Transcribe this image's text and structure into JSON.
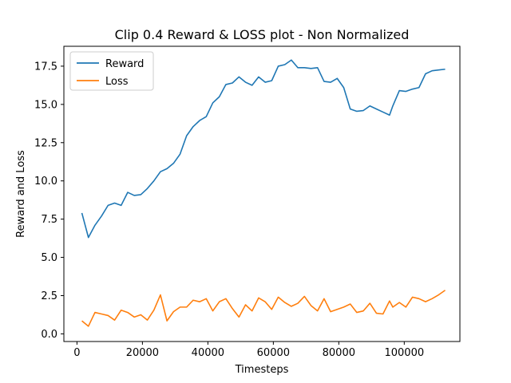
{
  "chart_data": {
    "type": "line",
    "title": "Clip 0.4 Reward & LOSS plot - Non Normalized",
    "xlabel": "Timesteps",
    "ylabel": "Reward and Loss",
    "xlim": [
      -4000,
      117000
    ],
    "ylim": [
      -0.5,
      18.8
    ],
    "xticks": [
      0,
      20000,
      40000,
      60000,
      80000,
      100000
    ],
    "yticks": [
      0.0,
      2.5,
      5.0,
      7.5,
      10.0,
      12.5,
      15.0,
      17.5
    ],
    "grid": false,
    "legend": "top-left",
    "series": [
      {
        "name": "Reward",
        "color": "#1f77b4",
        "x": [
          1500,
          3500,
          5500,
          7500,
          9500,
          11500,
          13500,
          15500,
          17500,
          19500,
          21500,
          23500,
          25500,
          27500,
          29500,
          31500,
          33500,
          35500,
          37500,
          39500,
          41500,
          43500,
          45500,
          47500,
          49500,
          51500,
          53500,
          55500,
          57500,
          59500,
          61500,
          63500,
          65500,
          67500,
          69500,
          71500,
          73500,
          75500,
          77500,
          79500,
          81500,
          83500,
          85500,
          87500,
          89500,
          91500,
          93500,
          95500,
          96500,
          98500,
          100500,
          102500,
          104500,
          106500,
          108500,
          110500,
          112500
        ],
        "values": [
          7.9,
          6.3,
          7.1,
          7.7,
          8.4,
          8.55,
          8.4,
          9.25,
          9.05,
          9.1,
          9.5,
          10.0,
          10.6,
          10.8,
          11.15,
          11.75,
          12.95,
          13.55,
          13.95,
          14.2,
          15.1,
          15.5,
          16.3,
          16.4,
          16.8,
          16.45,
          16.25,
          16.8,
          16.45,
          16.55,
          17.5,
          17.6,
          17.9,
          17.4,
          17.4,
          17.35,
          17.4,
          16.5,
          16.45,
          16.7,
          16.1,
          14.7,
          14.55,
          14.6,
          14.9,
          14.7,
          14.5,
          14.3,
          14.9,
          15.9,
          15.85,
          16.0,
          16.1,
          17.0,
          17.2,
          17.25,
          17.3
        ],
        "_note": ""
      },
      {
        "name": "Loss",
        "color": "#ff7f0e",
        "x": [
          1500,
          3500,
          5500,
          7500,
          9500,
          11500,
          13500,
          15500,
          17500,
          19500,
          21500,
          23500,
          25500,
          27500,
          29500,
          31500,
          33500,
          35500,
          37500,
          39500,
          41500,
          43500,
          45500,
          47500,
          49500,
          51500,
          53500,
          55500,
          57500,
          59500,
          61500,
          63500,
          65500,
          67500,
          69500,
          71500,
          73500,
          75500,
          77500,
          79500,
          81500,
          83500,
          85500,
          87500,
          89500,
          91500,
          93500,
          95500,
          96500,
          98500,
          100500,
          102500,
          104500,
          106500,
          108500,
          110500,
          112500
        ],
        "values": [
          0.85,
          0.5,
          1.4,
          1.3,
          1.2,
          0.9,
          1.55,
          1.4,
          1.1,
          1.25,
          0.9,
          1.55,
          2.55,
          0.85,
          1.45,
          1.75,
          1.75,
          2.2,
          2.1,
          2.3,
          1.5,
          2.1,
          2.3,
          1.65,
          1.1,
          1.9,
          1.5,
          2.35,
          2.1,
          1.6,
          2.4,
          2.05,
          1.8,
          2.0,
          2.45,
          1.85,
          1.5,
          2.3,
          1.45,
          1.6,
          1.75,
          1.95,
          1.4,
          1.5,
          2.0,
          1.35,
          1.3,
          2.15,
          1.75,
          2.05,
          1.75,
          2.4,
          2.3,
          2.1,
          2.3,
          2.55,
          2.85
        ]
      }
    ]
  }
}
